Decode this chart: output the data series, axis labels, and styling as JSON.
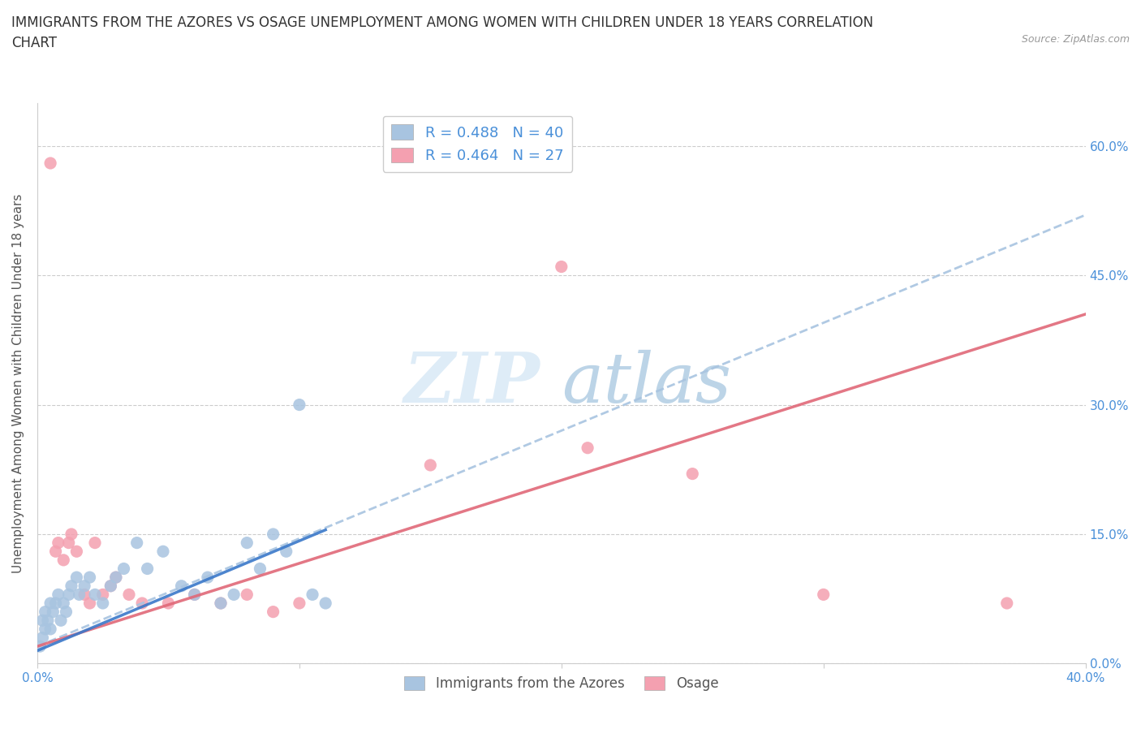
{
  "title": "IMMIGRANTS FROM THE AZORES VS OSAGE UNEMPLOYMENT AMONG WOMEN WITH CHILDREN UNDER 18 YEARS CORRELATION\nCHART",
  "source": "Source: ZipAtlas.com",
  "ylabel": "Unemployment Among Women with Children Under 18 years",
  "xlim": [
    0.0,
    0.4
  ],
  "ylim": [
    0.0,
    0.65
  ],
  "yticks": [
    0.0,
    0.15,
    0.3,
    0.45,
    0.6
  ],
  "ytick_labels": [
    "0.0%",
    "15.0%",
    "30.0%",
    "45.0%",
    "60.0%"
  ],
  "xticks": [
    0.0,
    0.1,
    0.2,
    0.3,
    0.4
  ],
  "xtick_labels": [
    "0.0%",
    "",
    "",
    "",
    "40.0%"
  ],
  "watermark_zip": "ZIP",
  "watermark_atlas": "atlas",
  "legend_label1": "R = 0.488   N = 40",
  "legend_label2": "R = 0.464   N = 27",
  "legend_bottom1": "Immigrants from the Azores",
  "legend_bottom2": "Osage",
  "blue_color": "#a8c4e0",
  "pink_color": "#f4a0b0",
  "line_blue_solid_color": "#3a78c9",
  "line_blue_dash_color": "#a8c4e0",
  "line_pink_color": "#e06878",
  "azores_x": [
    0.001,
    0.002,
    0.002,
    0.003,
    0.003,
    0.004,
    0.005,
    0.005,
    0.006,
    0.007,
    0.008,
    0.009,
    0.01,
    0.011,
    0.012,
    0.013,
    0.015,
    0.016,
    0.018,
    0.02,
    0.022,
    0.025,
    0.028,
    0.03,
    0.033,
    0.038,
    0.042,
    0.048,
    0.055,
    0.06,
    0.065,
    0.07,
    0.075,
    0.08,
    0.085,
    0.09,
    0.095,
    0.1,
    0.105,
    0.11
  ],
  "azores_y": [
    0.02,
    0.03,
    0.05,
    0.04,
    0.06,
    0.05,
    0.07,
    0.04,
    0.06,
    0.07,
    0.08,
    0.05,
    0.07,
    0.06,
    0.08,
    0.09,
    0.1,
    0.08,
    0.09,
    0.1,
    0.08,
    0.07,
    0.09,
    0.1,
    0.11,
    0.14,
    0.11,
    0.13,
    0.09,
    0.08,
    0.1,
    0.07,
    0.08,
    0.14,
    0.11,
    0.15,
    0.13,
    0.3,
    0.08,
    0.07
  ],
  "osage_x": [
    0.005,
    0.007,
    0.008,
    0.01,
    0.012,
    0.013,
    0.015,
    0.018,
    0.02,
    0.022,
    0.025,
    0.028,
    0.03,
    0.035,
    0.04,
    0.05,
    0.06,
    0.07,
    0.08,
    0.09,
    0.1,
    0.15,
    0.2,
    0.21,
    0.25,
    0.3,
    0.37
  ],
  "osage_y": [
    0.58,
    0.13,
    0.14,
    0.12,
    0.14,
    0.15,
    0.13,
    0.08,
    0.07,
    0.14,
    0.08,
    0.09,
    0.1,
    0.08,
    0.07,
    0.07,
    0.08,
    0.07,
    0.08,
    0.06,
    0.07,
    0.23,
    0.46,
    0.25,
    0.22,
    0.08,
    0.07
  ],
  "blue_solid_line_x": [
    0.0,
    0.11
  ],
  "blue_solid_line_y": [
    0.015,
    0.155
  ],
  "blue_dash_line_x": [
    0.0,
    0.4
  ],
  "blue_dash_line_y": [
    0.02,
    0.52
  ],
  "pink_line_x": [
    0.0,
    0.4
  ],
  "pink_line_y": [
    0.02,
    0.405
  ],
  "grid_color": "#cccccc",
  "background_color": "#ffffff",
  "title_fontsize": 12,
  "axis_label_fontsize": 11,
  "tick_fontsize": 11
}
